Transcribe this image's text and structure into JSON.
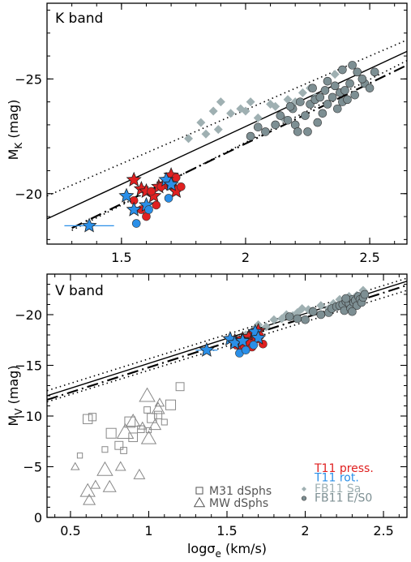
{
  "chart_data": [
    {
      "type": "scatter",
      "panel_label": "K band",
      "xlabel": "",
      "ylabel": "M_K (mag)",
      "xlim": [
        1.2,
        2.65
      ],
      "ylim": [
        -17.8,
        -28.3
      ],
      "x_ticks": [
        1.5,
        2,
        2.5
      ],
      "x_tick_labels": [
        "1.5",
        "2",
        "2.5"
      ],
      "y_ticks": [
        -20,
        -25
      ],
      "y_tick_labels": [
        "−20",
        "−25"
      ],
      "series": [
        {
          "name": "FB11 Sa",
          "marker": "diamond",
          "color": "#9fb0b2",
          "x": [
            1.77,
            1.82,
            1.84,
            1.87,
            1.89,
            1.9,
            1.94,
            1.98,
            2.0,
            2.02,
            2.05,
            2.1,
            2.12,
            2.15,
            2.17,
            2.2,
            2.23,
            2.26,
            2.28,
            2.33,
            2.36
          ],
          "y": [
            -22.4,
            -23.1,
            -22.6,
            -23.6,
            -22.8,
            -24.0,
            -23.5,
            -23.7,
            -23.6,
            -24.0,
            -23.3,
            -23.9,
            -23.8,
            -23.3,
            -24.1,
            -24.0,
            -24.4,
            -24.6,
            -24.2,
            -24.9,
            -25.2
          ]
        },
        {
          "name": "FB11 E/S0",
          "marker": "circle",
          "color": "#7d8f93",
          "x": [
            2.02,
            2.05,
            2.08,
            2.12,
            2.14,
            2.17,
            2.19,
            2.2,
            2.22,
            2.24,
            2.25,
            2.26,
            2.28,
            2.3,
            2.31,
            2.32,
            2.33,
            2.35,
            2.36,
            2.38,
            2.39,
            2.4,
            2.42,
            2.44,
            2.45,
            2.48,
            2.5,
            2.52,
            2.43,
            2.37,
            2.29,
            2.21,
            2.33,
            2.41,
            2.47,
            2.27,
            2.18,
            2.39
          ],
          "y": [
            -22.5,
            -22.9,
            -22.7,
            -23.0,
            -23.4,
            -23.2,
            -23.7,
            -23.0,
            -24.0,
            -23.4,
            -22.7,
            -23.9,
            -24.1,
            -24.2,
            -23.5,
            -24.5,
            -23.9,
            -24.2,
            -24.7,
            -24.4,
            -24.0,
            -24.5,
            -24.8,
            -24.3,
            -25.3,
            -24.8,
            -24.6,
            -25.3,
            -25.6,
            -23.7,
            -23.1,
            -22.7,
            -24.9,
            -24.1,
            -25.0,
            -24.6,
            -23.8,
            -25.4
          ]
        },
        {
          "name": "T11 press.",
          "marker": "star",
          "color": "#e02020",
          "x": [
            1.55,
            1.58,
            1.6,
            1.63,
            1.65,
            1.67,
            1.7,
            1.72
          ],
          "y": [
            -20.6,
            -20.2,
            -20.1,
            -19.9,
            -20.3,
            -20.4,
            -20.8,
            -20.1
          ]
        },
        {
          "name": "T11 press. (circles)",
          "marker": "circle",
          "color": "#e02020",
          "x": [
            1.55,
            1.58,
            1.6,
            1.62,
            1.64,
            1.66,
            1.7,
            1.72,
            1.74
          ],
          "y": [
            -19.7,
            -19.3,
            -19.0,
            -20.1,
            -19.5,
            -20.3,
            -20.4,
            -20.7,
            -20.3
          ]
        },
        {
          "name": "T11 rot.",
          "marker": "star",
          "color": "#2a8fe8",
          "x": [
            1.37,
            1.52,
            1.55,
            1.6,
            1.68,
            1.7
          ],
          "y": [
            -18.6,
            -19.9,
            -19.3,
            -19.5,
            -20.6,
            -20.4
          ]
        },
        {
          "name": "T11 rot. (circles)",
          "marker": "circle",
          "color": "#2a8fe8",
          "x": [
            1.56,
            1.61,
            1.69
          ],
          "y": [
            -18.7,
            -19.3,
            -19.8
          ]
        }
      ],
      "lines": [
        {
          "style": "solid",
          "points": [
            [
              1.2,
              -18.9
            ],
            [
              2.65,
              -26.2
            ]
          ]
        },
        {
          "style": "dotted",
          "points": [
            [
              1.2,
              -19.9
            ],
            [
              2.65,
              -26.7
            ]
          ]
        },
        {
          "style": "dotted",
          "points": [
            [
              1.3,
              -18.4
            ],
            [
              2.65,
              -25.8
            ]
          ]
        },
        {
          "style": "dashdot",
          "points": [
            [
              1.3,
              -18.5
            ],
            [
              2.65,
              -25.6
            ]
          ]
        }
      ],
      "errorbars": [
        {
          "x": [
            1.27,
            1.47
          ],
          "y": -18.6
        }
      ]
    },
    {
      "type": "scatter",
      "panel_label": "V band",
      "xlabel": "logσ_e (km/s)",
      "ylabel": "M_V (mag)",
      "xlim": [
        0.35,
        2.65
      ],
      "ylim": [
        0,
        -24
      ],
      "x_ticks": [
        0.5,
        1,
        1.5,
        2,
        2.5
      ],
      "x_tick_labels": [
        "0.5",
        "1",
        "1.5",
        "2",
        "2.5"
      ],
      "y_ticks": [
        0,
        -5,
        -10,
        -15,
        -20
      ],
      "y_tick_labels": [
        "0",
        "−5",
        "−10",
        "−15",
        "−20"
      ],
      "series": [
        {
          "name": "M31 dSphs",
          "marker": "square",
          "color": "#888888",
          "x": [
            0.56,
            0.61,
            0.64,
            0.72,
            0.76,
            0.81,
            0.84,
            0.88,
            0.9,
            0.95,
            1.0,
            1.02,
            1.06,
            1.1,
            1.14,
            1.2,
            0.99
          ],
          "y": [
            -6.1,
            -9.7,
            -9.9,
            -6.7,
            -8.3,
            -7.1,
            -6.6,
            -9.4,
            -7.9,
            -8.7,
            -8.6,
            -9.8,
            -10.1,
            -9.4,
            -11.1,
            -12.9,
            -10.6
          ]
        },
        {
          "name": "MW dSphs",
          "marker": "triangle",
          "color": "#888888",
          "x": [
            0.53,
            0.61,
            0.62,
            0.66,
            0.72,
            0.75,
            0.82,
            0.85,
            0.9,
            0.94,
            0.96,
            1.0,
            1.04,
            1.07,
            0.99,
            1.06
          ],
          "y": [
            -5.0,
            -2.6,
            -1.7,
            -3.2,
            -4.7,
            -3.0,
            -5.0,
            -8.4,
            -9.5,
            -4.2,
            -9.0,
            -7.8,
            -9.1,
            -11.3,
            -12.0,
            -10.7
          ]
        },
        {
          "name": "FB11 Sa",
          "marker": "diamond",
          "color": "#9fb0b2",
          "x": [
            1.62,
            1.67,
            1.7,
            1.75,
            1.8,
            1.85,
            1.88,
            1.92,
            1.95,
            1.98,
            2.02,
            2.05,
            2.1,
            2.15,
            2.18,
            2.22,
            2.28,
            2.33,
            2.37
          ],
          "y": [
            -18.0,
            -18.5,
            -19.0,
            -18.8,
            -19.5,
            -19.6,
            -20.0,
            -19.9,
            -20.2,
            -20.6,
            -20.5,
            -20.4,
            -20.9,
            -20.6,
            -21.1,
            -21.5,
            -21.8,
            -21.9,
            -22.4
          ]
        },
        {
          "name": "FB11 E/S0",
          "marker": "circle",
          "color": "#7d8f93",
          "x": [
            1.9,
            1.95,
            2.0,
            2.05,
            2.1,
            2.15,
            2.17,
            2.2,
            2.22,
            2.24,
            2.25,
            2.26,
            2.28,
            2.29,
            2.3,
            2.31,
            2.32,
            2.33,
            2.34,
            2.35,
            2.36,
            2.37,
            2.38,
            2.3,
            2.26
          ],
          "y": [
            -19.8,
            -19.6,
            -19.5,
            -20.3,
            -20.0,
            -20.2,
            -20.6,
            -20.8,
            -20.9,
            -21.0,
            -20.4,
            -21.3,
            -21.1,
            -20.6,
            -21.5,
            -21.2,
            -21.4,
            -20.9,
            -21.8,
            -21.5,
            -21.2,
            -21.7,
            -22.0,
            -20.3,
            -21.6
          ]
        },
        {
          "name": "T11 press.",
          "marker": "star",
          "color": "#e02020",
          "x": [
            1.55,
            1.58,
            1.6,
            1.62,
            1.64,
            1.66,
            1.68,
            1.7
          ],
          "y": [
            -17.4,
            -17.2,
            -17.6,
            -17.3,
            -17.8,
            -17.5,
            -18.1,
            -18.4
          ]
        },
        {
          "name": "T11 press. (circles)",
          "marker": "circle",
          "color": "#e02020",
          "x": [
            1.56,
            1.59,
            1.61,
            1.63,
            1.66,
            1.69,
            1.71,
            1.73
          ],
          "y": [
            -17.0,
            -16.6,
            -16.9,
            -17.3,
            -16.8,
            -17.6,
            -17.9,
            -17.1
          ]
        },
        {
          "name": "T11 rot.",
          "marker": "star",
          "color": "#2a8fe8",
          "x": [
            1.37,
            1.52,
            1.55,
            1.6,
            1.68,
            1.7
          ],
          "y": [
            -16.5,
            -17.6,
            -17.2,
            -17.4,
            -18.3,
            -17.7
          ]
        },
        {
          "name": "T11 rot. (circles)",
          "marker": "circle",
          "color": "#2a8fe8",
          "x": [
            1.58,
            1.62,
            1.67
          ],
          "y": [
            -16.2,
            -16.5,
            -17.0
          ]
        }
      ],
      "lines": [
        {
          "style": "solid",
          "points": [
            [
              0.35,
              -12.0
            ],
            [
              2.65,
              -23.3
            ]
          ]
        },
        {
          "style": "dotted",
          "points": [
            [
              0.35,
              -12.5
            ],
            [
              2.65,
              -23.6
            ]
          ]
        },
        {
          "style": "dotted",
          "points": [
            [
              0.35,
              -11.4
            ],
            [
              2.65,
              -22.4
            ]
          ]
        },
        {
          "style": "dashdot",
          "points": [
            [
              0.35,
              -11.6
            ],
            [
              2.65,
              -22.9
            ]
          ]
        }
      ],
      "errorbars": [
        {
          "x": [
            1.3,
            1.44
          ],
          "y": -16.5
        }
      ],
      "legend": [
        {
          "label": "T11 press.",
          "color": "#e02020"
        },
        {
          "label": "T11 rot.",
          "color": "#2a8fe8"
        },
        {
          "label": "FB11 Sa",
          "color": "#9fb0b2"
        },
        {
          "label": "FB11 E/S0",
          "color": "#7d8f93"
        },
        {
          "label": "M31 dSphs",
          "color": "#555555"
        },
        {
          "label": "MW dSphs",
          "color": "#555555"
        }
      ]
    }
  ]
}
